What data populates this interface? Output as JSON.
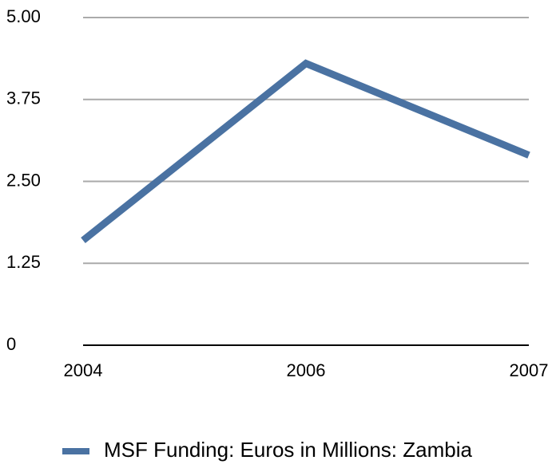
{
  "chart_data": {
    "type": "line",
    "categories": [
      "2004",
      "2006",
      "2007"
    ],
    "series": [
      {
        "name": "MSF Funding: Euros in Millions: Zambia",
        "color": "#4a72a2",
        "values": [
          1.6,
          4.3,
          2.9
        ]
      }
    ],
    "ylim": [
      0,
      5
    ],
    "yticks": [
      0,
      1.25,
      {
        "value": 2.5,
        "label": "2.50"
      },
      3.75,
      {
        "value": 5,
        "label": "5.00"
      }
    ],
    "grid": true,
    "legend": "bottom"
  }
}
